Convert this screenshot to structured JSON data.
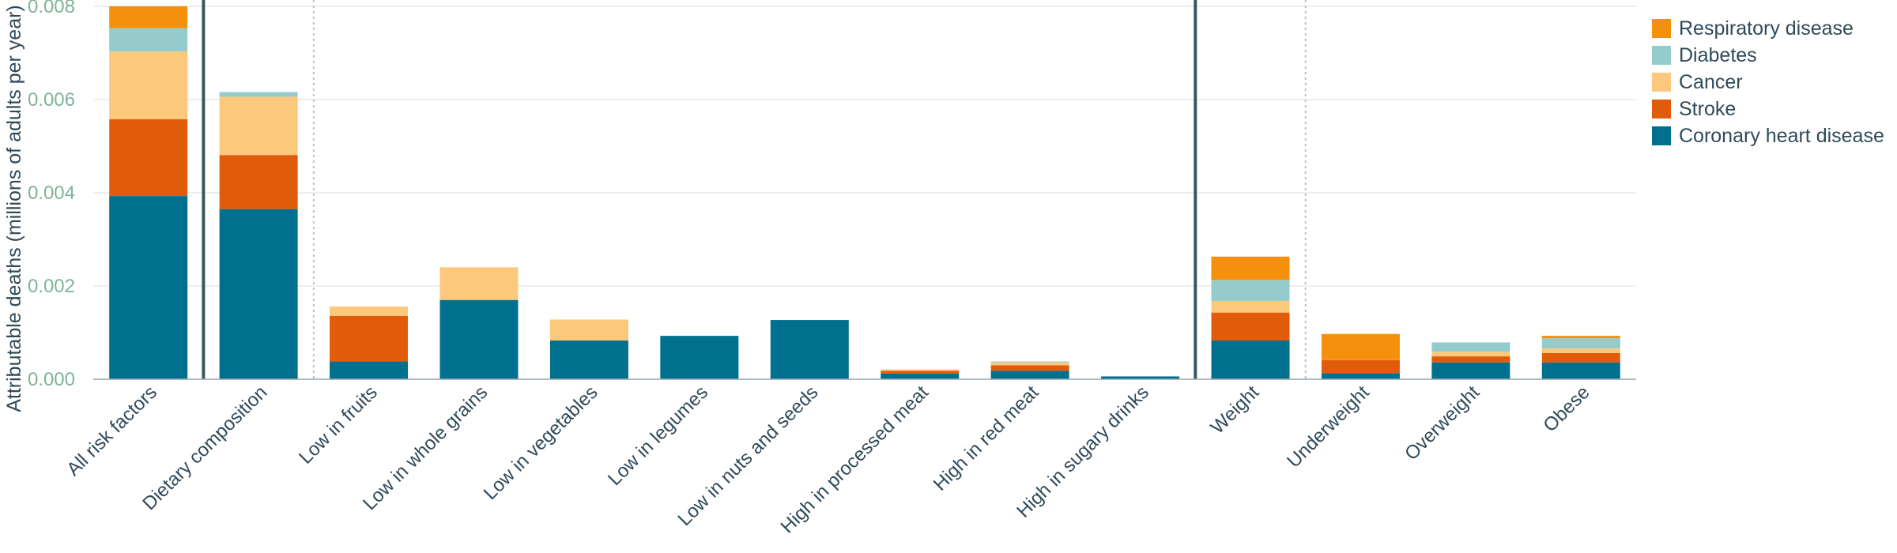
{
  "chart_data": {
    "type": "bar",
    "stacked": true,
    "title": "",
    "xlabel": "",
    "ylabel": "Attributable deaths (millions of adults per year)",
    "ylim": [
      0,
      0.008
    ],
    "yticks": [
      "0.000",
      "0.002",
      "0.004",
      "0.006",
      "0.008"
    ],
    "ytick_values": [
      0,
      0.002,
      0.004,
      0.006,
      0.008
    ],
    "grid": true,
    "legend_position": "top-right",
    "categories": [
      "All risk factors",
      "Dietary composition",
      "Low in fruits",
      "Low in whole grains",
      "Low in vegetables",
      "Low in legumes",
      "Low in nuts and seeds",
      "High in processed meat",
      "High in red meat",
      "High in sugary drinks",
      "Weight",
      "Underweight",
      "Overweight",
      "Obese"
    ],
    "series": [
      {
        "name": "Coronary heart disease",
        "color": "#00708f",
        "values": [
          0.00393,
          0.00365,
          0.00038,
          0.0017,
          0.00083,
          0.00093,
          0.00127,
          0.00012,
          0.00018,
          6e-05,
          0.00083,
          0.00013,
          0.00036,
          0.00036
        ]
      },
      {
        "name": "Stroke",
        "color": "#e05c0b",
        "values": [
          0.00165,
          0.00116,
          0.00098,
          0,
          0,
          0,
          0,
          6e-05,
          0.00012,
          0,
          0.0006,
          0.00028,
          0.00013,
          0.0002
        ]
      },
      {
        "name": "Cancer",
        "color": "#fcc97c",
        "values": [
          0.00145,
          0.00125,
          0.0002,
          0.0007,
          0.00045,
          0,
          0,
          3e-05,
          6e-05,
          0,
          0.00025,
          0,
          0.0001,
          0.0001
        ]
      },
      {
        "name": "Diabetes",
        "color": "#95cbcb",
        "values": [
          0.0005,
          0.0001,
          0,
          0,
          0,
          0,
          0,
          0,
          2e-05,
          0,
          0.00045,
          0,
          0.0002,
          0.00022
        ]
      },
      {
        "name": "Respiratory disease",
        "color": "#f4900b",
        "values": [
          0.0006,
          0,
          0,
          0,
          0,
          0,
          0,
          0,
          0,
          0,
          0.0005,
          0.00056,
          0,
          5e-05
        ]
      }
    ],
    "legend_order": [
      "Respiratory disease",
      "Diabetes",
      "Cancer",
      "Stroke",
      "Coronary heart disease"
    ],
    "separators_solid_after": [
      "All risk factors",
      "Weight"
    ],
    "separators_dotted_after": [
      "Dietary composition",
      "Weight"
    ]
  }
}
